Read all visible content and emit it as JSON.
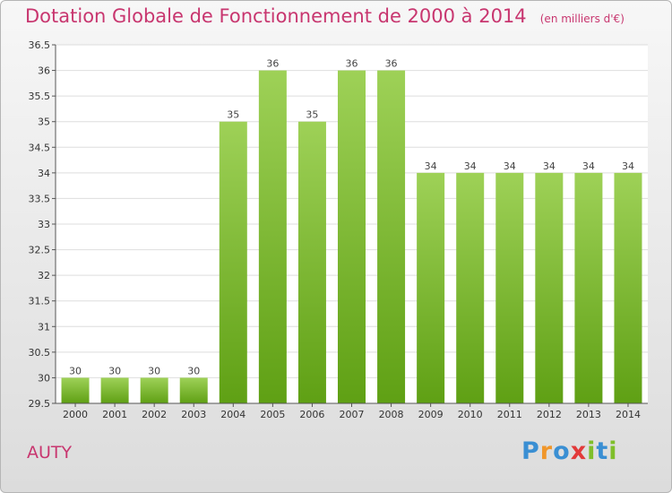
{
  "header": {
    "title": "Dotation Globale de Fonctionnement de 2000 à 2014",
    "subtitle": "(en milliers d'€)"
  },
  "commune": "AUTY",
  "logo": {
    "text": "Proxiti"
  },
  "colors": {
    "title": "#c8366f",
    "bar_top": "#9ed157",
    "bar_bottom": "#5fa014"
  },
  "chart_data": {
    "type": "bar",
    "categories": [
      "2000",
      "2001",
      "2002",
      "2003",
      "2004",
      "2005",
      "2006",
      "2007",
      "2008",
      "2009",
      "2010",
      "2011",
      "2012",
      "2013",
      "2014"
    ],
    "values": [
      30,
      30,
      30,
      30,
      35,
      36,
      35,
      36,
      36,
      34,
      34,
      34,
      34,
      34,
      34
    ],
    "labels": [
      "30",
      "30",
      "30",
      "30",
      "35",
      "36",
      "35",
      "36",
      "36",
      "34",
      "34",
      "34",
      "34",
      "34",
      "34"
    ],
    "ylim": [
      29.5,
      36.5
    ],
    "yticks": [
      "29.5",
      "30",
      "30.5",
      "31",
      "31.5",
      "32",
      "32.5",
      "33",
      "33.5",
      "34",
      "34.5",
      "35",
      "35.5",
      "36",
      "36.5"
    ],
    "grid": true
  }
}
